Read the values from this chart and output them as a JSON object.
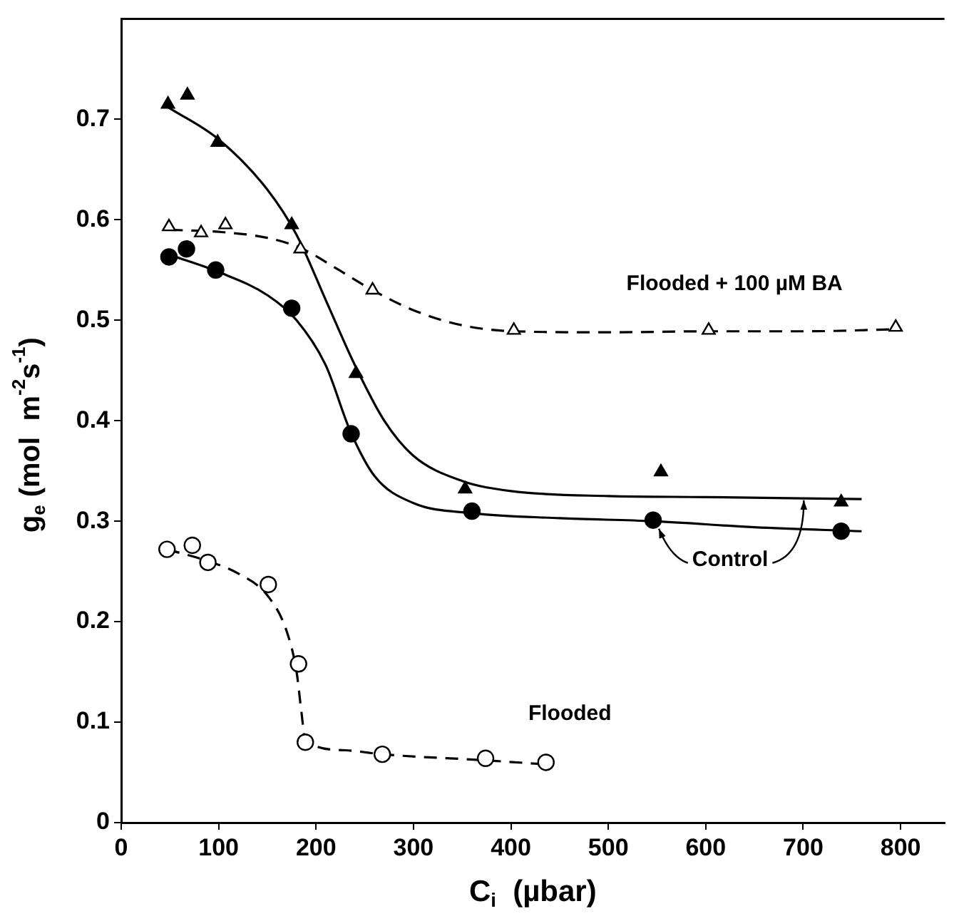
{
  "chart_data": {
    "type": "scatter",
    "xlabel": "C$_{i}$  (µbar)",
    "ylabel": "g$_{e}$ (mol  m$^{-2}$s$^{-1}$)",
    "xlim": [
      0,
      845
    ],
    "ylim": [
      0,
      0.8
    ],
    "xticks": [
      0,
      100,
      200,
      300,
      400,
      500,
      600,
      700,
      800
    ],
    "yticks": [
      0,
      0.1,
      0.2,
      0.3,
      0.4,
      0.5,
      0.6,
      0.7
    ],
    "grid": false,
    "legend": false,
    "series": [
      {
        "marker": "triangle",
        "color": "#000000",
        "x": [
          48,
          68,
          99,
          175,
          241,
          353,
          554,
          739
        ],
        "values": [
          0.715,
          0.724,
          0.677,
          0.595,
          0.447,
          0.332,
          0.349,
          0.319
        ]
      },
      {
        "marker": "circle",
        "color": "#000000",
        "x": [
          49,
          67,
          97,
          175,
          236,
          360,
          546,
          739
        ],
        "values": [
          0.563,
          0.571,
          0.55,
          0.512,
          0.387,
          0.31,
          0.301,
          0.29
        ]
      },
      {
        "marker": "triangle",
        "color": "#ffffff",
        "x": [
          49,
          82,
          107,
          184,
          258,
          403,
          603,
          795
        ],
        "values": [
          0.593,
          0.587,
          0.595,
          0.571,
          0.53,
          0.49,
          0.49,
          0.493
        ]
      },
      {
        "marker": "circle",
        "color": "#ffffff",
        "x": [
          47,
          73,
          89,
          151,
          182,
          189,
          268,
          374,
          436
        ],
        "values": [
          0.272,
          0.276,
          0.259,
          0.237,
          0.158,
          0.08,
          0.068,
          0.064,
          0.06
        ]
      },
      {
        "type": "line",
        "line_style": "solid",
        "color": "#000000",
        "x": [
          48,
          100,
          150,
          180,
          210,
          240,
          270,
          300,
          350,
          400,
          500,
          600,
          760
        ],
        "values": [
          0.712,
          0.68,
          0.63,
          0.585,
          0.52,
          0.455,
          0.4,
          0.365,
          0.34,
          0.33,
          0.325,
          0.324,
          0.322
        ]
      },
      {
        "type": "line",
        "line_style": "solid",
        "color": "#000000",
        "x": [
          50,
          100,
          150,
          180,
          210,
          235,
          260,
          300,
          360,
          450,
          546,
          650,
          760
        ],
        "values": [
          0.565,
          0.548,
          0.525,
          0.5,
          0.455,
          0.39,
          0.345,
          0.318,
          0.308,
          0.303,
          0.3,
          0.294,
          0.29
        ]
      },
      {
        "type": "line",
        "line_style": "dashed",
        "color": "#000000",
        "x": [
          50,
          100,
          150,
          184,
          220,
          258,
          300,
          350,
          403,
          500,
          603,
          700,
          795
        ],
        "values": [
          0.59,
          0.588,
          0.582,
          0.572,
          0.552,
          0.53,
          0.51,
          0.495,
          0.489,
          0.488,
          0.489,
          0.489,
          0.491
        ]
      },
      {
        "type": "line",
        "line_style": "dashed",
        "color": "#000000",
        "x": [
          47,
          90,
          120,
          151,
          170,
          180,
          185,
          189,
          230,
          268,
          374,
          436
        ],
        "values": [
          0.272,
          0.26,
          0.248,
          0.225,
          0.19,
          0.15,
          0.11,
          0.082,
          0.072,
          0.068,
          0.062,
          0.058
        ]
      }
    ],
    "annotations": [
      "Flooded + 100 µM BA",
      {
        "text": "Control",
        "x": 546,
        "y": 0.301
      },
      "Flooded"
    ]
  }
}
